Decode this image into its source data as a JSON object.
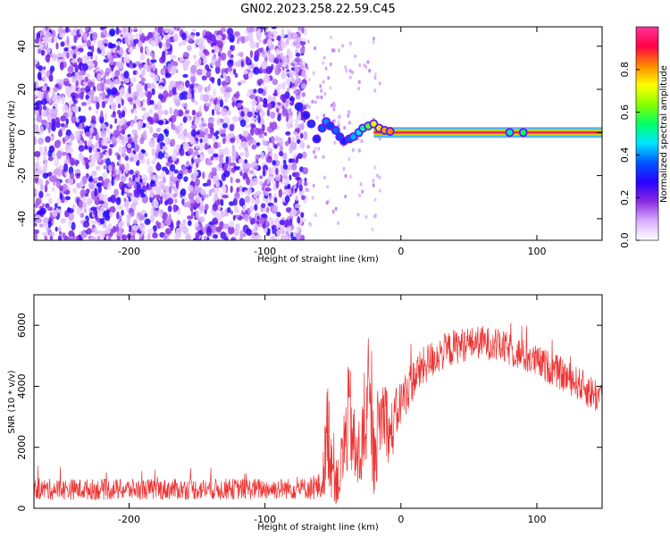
{
  "figure": {
    "title": "GN02.2023.258.22.59.C45"
  },
  "chart_data": [
    {
      "type": "heatmap",
      "title": "",
      "xlabel": "Height of straight line (km)",
      "ylabel": "Frequency (Hz)",
      "xlim": [
        -270,
        148
      ],
      "ylim": [
        -50,
        49
      ],
      "xticks": [
        -200,
        -100,
        0,
        100
      ],
      "yticks": [
        -40,
        -20,
        0,
        20,
        40
      ],
      "xtick_labels": [
        "-200",
        "-100",
        "0",
        "100"
      ],
      "ytick_labels": [
        "-40",
        "-20",
        "0",
        "20",
        "40"
      ],
      "colorbar": {
        "label": "Normalized spectral amplitude",
        "range": [
          0,
          1
        ],
        "ticks": [
          0.0,
          0.2,
          0.4,
          0.6,
          0.8
        ],
        "tick_labels": [
          "0.0",
          "0.2",
          "0.4",
          "0.6",
          "0.8"
        ],
        "colormap": [
          "#ffffff",
          "#d8b0ff",
          "#8a2be2",
          "#2a00ff",
          "#0055ff",
          "#00e5ff",
          "#00ff66",
          "#88ff00",
          "#ffff00",
          "#ff8800",
          "#ff0044",
          "#ff3399"
        ]
      },
      "noise_region": {
        "x_range": [
          -270,
          -70
        ],
        "freq_range": [
          -50,
          49
        ],
        "intensity": [
          0.05,
          0.3
        ]
      },
      "carrier_line": {
        "freq": 0,
        "x_start": -20,
        "x_end": 148,
        "amplitude": 0.95
      },
      "transition_points": [
        {
          "x": -75,
          "freq": 12,
          "amplitude": 0.32
        },
        {
          "x": -70,
          "freq": 8,
          "amplitude": 0.3
        },
        {
          "x": -66,
          "freq": 4,
          "amplitude": 0.33
        },
        {
          "x": -62,
          "freq": -3,
          "amplitude": 0.3
        },
        {
          "x": -58,
          "freq": 2,
          "amplitude": 0.36
        },
        {
          "x": -55,
          "freq": 5,
          "amplitude": 0.4
        },
        {
          "x": -52,
          "freq": 3,
          "amplitude": 0.34
        },
        {
          "x": -48,
          "freq": 1,
          "amplitude": 0.38
        },
        {
          "x": -45,
          "freq": -2,
          "amplitude": 0.35
        },
        {
          "x": -42,
          "freq": -4,
          "amplitude": 0.3
        },
        {
          "x": -38,
          "freq": -3,
          "amplitude": 0.36
        },
        {
          "x": -35,
          "freq": -2,
          "amplitude": 0.42
        },
        {
          "x": -31,
          "freq": 0,
          "amplitude": 0.45
        },
        {
          "x": -28,
          "freq": 2,
          "amplitude": 0.5
        },
        {
          "x": -24,
          "freq": 3,
          "amplitude": 0.6
        },
        {
          "x": -20,
          "freq": 4,
          "amplitude": 0.7
        },
        {
          "x": -16,
          "freq": 2,
          "amplitude": 0.75
        },
        {
          "x": -12,
          "freq": 1,
          "amplitude": 0.8
        },
        {
          "x": -8,
          "freq": 0.5,
          "amplitude": 0.82
        },
        {
          "x": 80,
          "freq": 0,
          "amplitude": 0.5
        },
        {
          "x": 90,
          "freq": 0,
          "amplitude": 0.55
        }
      ]
    },
    {
      "type": "line",
      "title": "",
      "xlabel": "Height of straight line (km)",
      "ylabel": "SNR (10 * v/v)",
      "xlim": [
        -270,
        148
      ],
      "ylim": [
        0,
        7000
      ],
      "xticks": [
        -200,
        -100,
        0,
        100
      ],
      "yticks": [
        0,
        2000,
        4000,
        6000
      ],
      "xtick_labels": [
        "-200",
        "-100",
        "0",
        "100"
      ],
      "ytick_labels": [
        "0",
        "2000",
        "4000",
        "6000"
      ],
      "color": "#ee3333",
      "series": [
        {
          "name": "SNR",
          "x": [
            -270,
            -200,
            -120,
            -70,
            -58,
            -54,
            -50,
            -46,
            -42,
            -38,
            -33,
            -28,
            -24,
            -20,
            -16,
            -12,
            -8,
            -4,
            0,
            10,
            20,
            30,
            40,
            50,
            60,
            70,
            80,
            90,
            100,
            110,
            120,
            130,
            140,
            148
          ],
          "mean": [
            620,
            620,
            630,
            650,
            700,
            2600,
            1400,
            800,
            1900,
            3200,
            1500,
            2100,
            3500,
            1800,
            2800,
            3300,
            2300,
            3000,
            3500,
            4300,
            4800,
            5100,
            5300,
            5400,
            5450,
            5350,
            5200,
            5000,
            4800,
            4600,
            4350,
            4100,
            3800,
            3600
          ],
          "spread": [
            350,
            350,
            350,
            350,
            500,
            1800,
            1300,
            700,
            1500,
            1800,
            1200,
            1600,
            1600,
            1500,
            1400,
            1300,
            1100,
            900,
            800,
            700,
            650,
            600,
            600,
            550,
            550,
            550,
            550,
            550,
            550,
            550,
            550,
            550,
            600,
            600
          ]
        }
      ]
    }
  ]
}
